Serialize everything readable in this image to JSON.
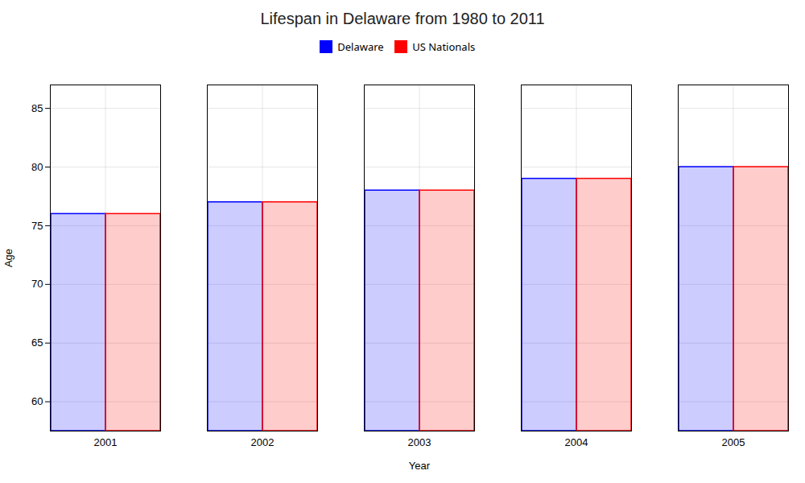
{
  "chart_data": {
    "type": "bar",
    "title": "Lifespan in Delaware from 1980 to 2011",
    "xlabel": "Year",
    "ylabel": "Age",
    "categories": [
      "2001",
      "2002",
      "2003",
      "2004",
      "2005"
    ],
    "series": [
      {
        "name": "Delaware",
        "color": "#0000ff",
        "values": [
          76,
          77,
          78,
          79,
          80
        ]
      },
      {
        "name": "US Nationals",
        "color": "#ff0000",
        "values": [
          76,
          77,
          78,
          79,
          80
        ]
      }
    ],
    "ylim": [
      57.5,
      87
    ],
    "yticks": [
      60,
      65,
      70,
      75,
      80,
      85
    ],
    "grid": true,
    "legend": "top"
  }
}
